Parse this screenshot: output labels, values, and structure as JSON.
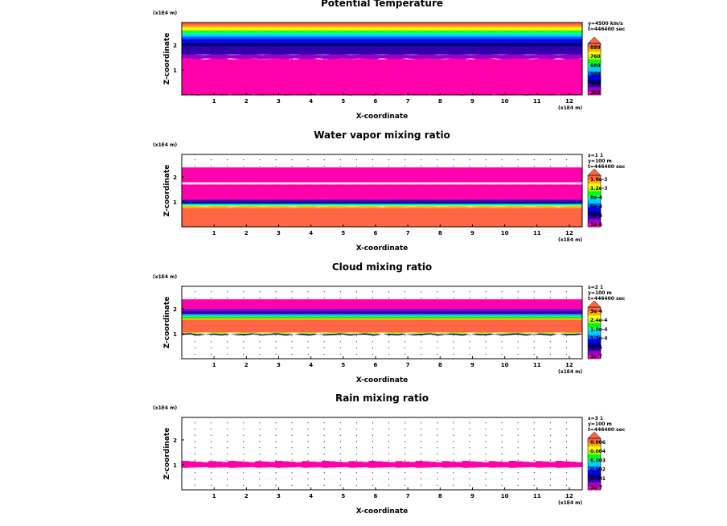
{
  "chart_data": [
    {
      "type": "heatmap",
      "title": "Potential Temperature",
      "xlabel": "X-coordinate",
      "ylabel": "Z-coordinate",
      "x_unit": "(x1E4 m)",
      "z_unit": "(x1E4 m)",
      "xticks": [
        "1",
        "2",
        "3",
        "4",
        "5",
        "6",
        "7",
        "8",
        "9",
        "10",
        "11",
        "12"
      ],
      "zticks": [
        "1",
        "2"
      ],
      "xlim": [
        0,
        12.4
      ],
      "zlim": [
        0,
        2.9
      ],
      "info": [
        "y=4500 km/s",
        "t=446400 sec"
      ],
      "colorbar_labels": [
        "880",
        "760",
        "680",
        "580",
        "460",
        "380"
      ],
      "colors": [
        "#ff00aa",
        "#9900cc",
        "#3300aa",
        "#000088",
        "#0000ff",
        "#0066ff",
        "#00ccff",
        "#00ffaa",
        "#00ff00",
        "#aaff00",
        "#ffff00",
        "#ffaa00",
        "#ff6644"
      ],
      "bands": [
        {
          "z0": 0.0,
          "z1": 1.45,
          "c": 0,
          "wavy": 0.03
        },
        {
          "z0": 1.45,
          "z1": 1.62,
          "c": 1,
          "wavy": 0.02
        },
        {
          "z0": 1.62,
          "z1": 1.95,
          "c": 2
        },
        {
          "z0": 1.95,
          "z1": 2.12,
          "c": 3
        },
        {
          "z0": 2.12,
          "z1": 2.24,
          "c": 4
        },
        {
          "z0": 2.24,
          "z1": 2.34,
          "c": 5
        },
        {
          "z0": 2.34,
          "z1": 2.42,
          "c": 6
        },
        {
          "z0": 2.42,
          "z1": 2.5,
          "c": 7
        },
        {
          "z0": 2.5,
          "z1": 2.56,
          "c": 8
        },
        {
          "z0": 2.56,
          "z1": 2.62,
          "c": 9
        },
        {
          "z0": 2.62,
          "z1": 2.7,
          "c": 10
        },
        {
          "z0": 2.7,
          "z1": 2.78,
          "c": 11
        },
        {
          "z0": 2.78,
          "z1": 2.9,
          "c": 12
        }
      ]
    },
    {
      "type": "heatmap",
      "title": "Water vapor mixing ratio",
      "xlabel": "X-coordinate",
      "ylabel": "Z-coordinate",
      "x_unit": "(x1E4 m)",
      "z_unit": "(x1E4 m)",
      "xticks": [
        "1",
        "2",
        "3",
        "4",
        "5",
        "6",
        "7",
        "8",
        "9",
        "10",
        "11",
        "12"
      ],
      "zticks": [
        "1",
        "2"
      ],
      "xlim": [
        0,
        12.4
      ],
      "zlim": [
        0,
        2.9
      ],
      "info": [
        "s=1 1",
        "y=100 m",
        "t=446400 sec"
      ],
      "colorbar_labels": [
        "1.6e-3",
        "1.2e-3",
        "8e-4",
        "6e-4",
        "3e-4",
        "1e-6"
      ],
      "colors": [
        "#ff00aa",
        "#9900cc",
        "#3300aa",
        "#000088",
        "#0000ff",
        "#0066ff",
        "#00ccff",
        "#00ffaa",
        "#00ff00",
        "#aaff00",
        "#ffff00",
        "#ffaa00",
        "#ff6644"
      ],
      "bands": [
        {
          "z0": 0.0,
          "z1": 0.75,
          "c": 12
        },
        {
          "z0": 0.75,
          "z1": 0.82,
          "c": 11,
          "wavy": 0.02
        },
        {
          "z0": 0.82,
          "z1": 0.86,
          "c": 9
        },
        {
          "z0": 0.86,
          "z1": 0.9,
          "c": 7
        },
        {
          "z0": 0.9,
          "z1": 0.95,
          "c": 5
        },
        {
          "z0": 0.95,
          "z1": 1.02,
          "c": 3
        },
        {
          "z0": 1.02,
          "z1": 1.08,
          "c": 2
        },
        {
          "z0": 1.08,
          "z1": 1.7,
          "c": 0
        },
        {
          "z0": 1.7,
          "z1": 1.78,
          "c": -1
        },
        {
          "z0": 1.78,
          "z1": 2.38,
          "c": 0
        }
      ]
    },
    {
      "type": "heatmap",
      "title": "Cloud mixing ratio",
      "xlabel": "X-coordinate",
      "ylabel": "Z-coordinate",
      "x_unit": "(x1E4 m)",
      "z_unit": "(x1E4 m)",
      "xticks": [
        "1",
        "2",
        "3",
        "4",
        "5",
        "6",
        "7",
        "8",
        "9",
        "10",
        "11",
        "12"
      ],
      "zticks": [
        "1",
        "2"
      ],
      "xlim": [
        0,
        12.4
      ],
      "zlim": [
        0,
        2.9
      ],
      "info": [
        "s=2 1",
        "y=100 m",
        "t=446400 sec"
      ],
      "colorbar_labels": [
        "3e-4",
        "2.4e-4",
        "1.8e-4",
        "1.2e-4",
        "6e-5",
        "1e-7"
      ],
      "colors": [
        "#ff00aa",
        "#9900cc",
        "#3300aa",
        "#000088",
        "#0000ff",
        "#0066ff",
        "#00ccff",
        "#00ffaa",
        "#00ff00",
        "#aaff00",
        "#ffff00",
        "#ffaa00",
        "#ff6644"
      ],
      "bands": [
        {
          "z0": 0.95,
          "z1": 1.0,
          "c": 3,
          "wavy": 0.03
        },
        {
          "z0": 1.0,
          "z1": 1.05,
          "c": 9,
          "wavy": 0.03
        },
        {
          "z0": 1.05,
          "z1": 1.55,
          "c": 12
        },
        {
          "z0": 1.55,
          "z1": 1.62,
          "c": 11
        },
        {
          "z0": 1.62,
          "z1": 1.7,
          "c": 8
        },
        {
          "z0": 1.7,
          "z1": 1.78,
          "c": 6
        },
        {
          "z0": 1.78,
          "z1": 1.92,
          "c": 2
        },
        {
          "z0": 1.92,
          "z1": 2.02,
          "c": 1
        },
        {
          "z0": 2.02,
          "z1": 2.38,
          "c": 0
        }
      ]
    },
    {
      "type": "heatmap",
      "title": "Rain mixing ratio",
      "xlabel": "X-coordinate",
      "ylabel": "Z-coordinate",
      "x_unit": "(x1E4 m)",
      "z_unit": "(x1E4 m)",
      "xticks": [
        "1",
        "2",
        "3",
        "4",
        "5",
        "6",
        "7",
        "8",
        "9",
        "10",
        "11",
        "12"
      ],
      "zticks": [
        "1",
        "2"
      ],
      "xlim": [
        0,
        12.4
      ],
      "zlim": [
        0,
        2.9
      ],
      "info": [
        "s=3 1",
        "y=100 m",
        "t=446400 sec"
      ],
      "colorbar_labels": [
        "0.006",
        "0.004",
        "0.003",
        "0.002",
        "0.001",
        "1e-7"
      ],
      "colors": [
        "#ff00aa",
        "#9900cc",
        "#3300aa",
        "#000088",
        "#0000ff",
        "#0066ff",
        "#00ccff",
        "#00ffaa",
        "#00ff00",
        "#aaff00",
        "#ffff00",
        "#ffaa00",
        "#ff6644"
      ],
      "bands": [
        {
          "z0": 0.88,
          "z1": 1.16,
          "c": 0,
          "patchy": true
        }
      ]
    }
  ]
}
